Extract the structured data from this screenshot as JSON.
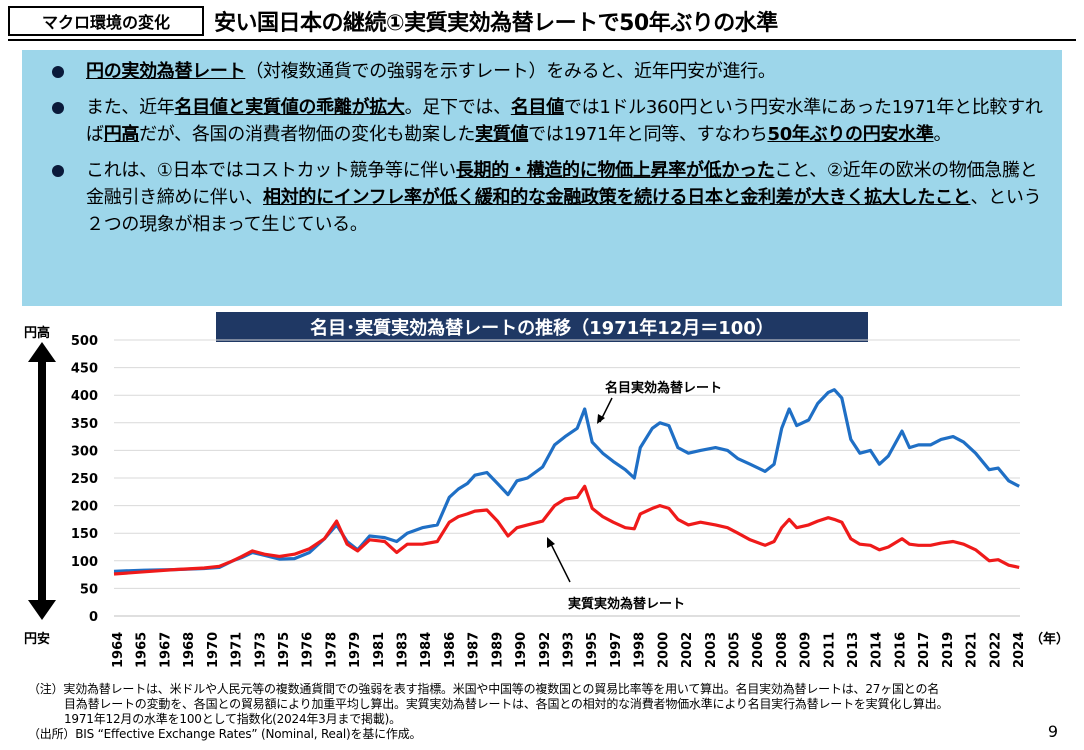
{
  "header": {
    "tag": "マクロ環境の変化",
    "title": "安い国日本の継続①実質実効為替レートで50年ぶりの水準"
  },
  "bullets": [
    [
      {
        "t": "円の実効為替レート",
        "b": true
      },
      {
        "t": "（対複数通貨での強弱を示すレート）をみると、近年円安が進行。",
        "b": false
      }
    ],
    [
      {
        "t": "また、近年",
        "b": false
      },
      {
        "t": "名目値と実質値の乖離が拡大",
        "b": true
      },
      {
        "t": "。足下では、",
        "b": false
      },
      {
        "t": "名目値",
        "b": true
      },
      {
        "t": "では1ドル360円という円安水準にあった1971年と比較すれば",
        "b": false
      },
      {
        "t": "円高",
        "b": true
      },
      {
        "t": "だが、各国の消費者物価の変化も勘案した",
        "b": false
      },
      {
        "t": "実質値",
        "b": true
      },
      {
        "t": "では1971年と同等、すなわち",
        "b": false
      },
      {
        "t": "50年ぶりの円安水準",
        "b": true
      },
      {
        "t": "。",
        "b": false
      }
    ],
    [
      {
        "t": "これは、①日本ではコストカット競争等に伴い",
        "b": false
      },
      {
        "t": "長期的・構造的に物価上昇率が低かった",
        "b": true
      },
      {
        "t": "こと、②近年の欧米の物価急騰と金融引き締めに伴い、",
        "b": false
      },
      {
        "t": "相対的にインフレ率が低く緩和的な金融政策を続ける日本と金利差が大きく拡大したこと",
        "b": true
      },
      {
        "t": "、という２つの現象が相まって生じている。",
        "b": false
      }
    ]
  ],
  "chart_data": {
    "type": "line",
    "title": "名目･実質実効為替レートの推移（1971年12月＝100）",
    "ylim": [
      0,
      500
    ],
    "yticks": [
      0,
      50,
      100,
      150,
      200,
      250,
      300,
      350,
      400,
      450,
      500
    ],
    "xlim": [
      1964,
      2024.25
    ],
    "xticks": [
      "1964",
      "1965",
      "1967",
      "1968",
      "1970",
      "1971",
      "1973",
      "1975",
      "1976",
      "1978",
      "1979",
      "1981",
      "1983",
      "1984",
      "1986",
      "1987",
      "1989",
      "1990",
      "1992",
      "1993",
      "1995",
      "1997",
      "1998",
      "2000",
      "2002",
      "2003",
      "2005",
      "2006",
      "2008",
      "2009",
      "2011",
      "2013",
      "2014",
      "2016",
      "2017",
      "2019",
      "2021",
      "2022",
      "2024"
    ],
    "y_high_label": "円高",
    "y_low_label": "円安",
    "x_unit": "（年）",
    "grid": true,
    "series": [
      {
        "name": "名目実効為替レート",
        "color": "#1f6fc5",
        "points": [
          [
            1964,
            81
          ],
          [
            1966,
            83
          ],
          [
            1968,
            84
          ],
          [
            1970,
            86
          ],
          [
            1971,
            88
          ],
          [
            1971.9,
            100
          ],
          [
            1972.5,
            106
          ],
          [
            1973.2,
            115
          ],
          [
            1974,
            110
          ],
          [
            1975,
            103
          ],
          [
            1976,
            104
          ],
          [
            1977,
            115
          ],
          [
            1978,
            140
          ],
          [
            1978.8,
            165
          ],
          [
            1979.5,
            135
          ],
          [
            1980.2,
            120
          ],
          [
            1981,
            145
          ],
          [
            1982,
            142
          ],
          [
            1982.8,
            135
          ],
          [
            1983.5,
            150
          ],
          [
            1984.5,
            160
          ],
          [
            1985.5,
            165
          ],
          [
            1986.3,
            215
          ],
          [
            1986.9,
            230
          ],
          [
            1987.5,
            240
          ],
          [
            1988,
            255
          ],
          [
            1988.8,
            260
          ],
          [
            1989.5,
            240
          ],
          [
            1990.2,
            220
          ],
          [
            1990.8,
            245
          ],
          [
            1991.5,
            250
          ],
          [
            1992.5,
            270
          ],
          [
            1993.3,
            310
          ],
          [
            1994,
            325
          ],
          [
            1994.8,
            340
          ],
          [
            1995.3,
            375
          ],
          [
            1995.8,
            315
          ],
          [
            1996.5,
            295
          ],
          [
            1997.2,
            280
          ],
          [
            1998,
            265
          ],
          [
            1998.6,
            250
          ],
          [
            1999,
            305
          ],
          [
            1999.8,
            340
          ],
          [
            2000.3,
            350
          ],
          [
            2000.9,
            345
          ],
          [
            2001.5,
            305
          ],
          [
            2002.2,
            295
          ],
          [
            2003,
            300
          ],
          [
            2004,
            305
          ],
          [
            2004.8,
            300
          ],
          [
            2005.5,
            285
          ],
          [
            2006.3,
            275
          ],
          [
            2007.3,
            262
          ],
          [
            2007.9,
            275
          ],
          [
            2008.4,
            340
          ],
          [
            2008.9,
            375
          ],
          [
            2009.4,
            345
          ],
          [
            2010.2,
            355
          ],
          [
            2010.8,
            385
          ],
          [
            2011.5,
            405
          ],
          [
            2011.9,
            410
          ],
          [
            2012.4,
            395
          ],
          [
            2013,
            320
          ],
          [
            2013.6,
            295
          ],
          [
            2014.3,
            300
          ],
          [
            2014.9,
            275
          ],
          [
            2015.5,
            290
          ],
          [
            2016.4,
            335
          ],
          [
            2016.9,
            305
          ],
          [
            2017.5,
            310
          ],
          [
            2018.3,
            310
          ],
          [
            2019,
            320
          ],
          [
            2019.8,
            325
          ],
          [
            2020.5,
            315
          ],
          [
            2021.3,
            295
          ],
          [
            2022.2,
            265
          ],
          [
            2022.8,
            268
          ],
          [
            2023.5,
            245
          ],
          [
            2024.2,
            235
          ]
        ]
      },
      {
        "name": "実質実効為替レート",
        "color": "#ef1a1a",
        "points": [
          [
            1964,
            76
          ],
          [
            1966,
            80
          ],
          [
            1968,
            84
          ],
          [
            1970,
            87
          ],
          [
            1971,
            90
          ],
          [
            1971.9,
            100
          ],
          [
            1972.5,
            108
          ],
          [
            1973.2,
            118
          ],
          [
            1974,
            112
          ],
          [
            1975,
            108
          ],
          [
            1976,
            112
          ],
          [
            1977,
            122
          ],
          [
            1978,
            140
          ],
          [
            1978.8,
            172
          ],
          [
            1979.5,
            130
          ],
          [
            1980.2,
            118
          ],
          [
            1981,
            138
          ],
          [
            1982,
            135
          ],
          [
            1982.8,
            115
          ],
          [
            1983.5,
            130
          ],
          [
            1984.5,
            130
          ],
          [
            1985.5,
            135
          ],
          [
            1986.3,
            170
          ],
          [
            1986.9,
            180
          ],
          [
            1987.5,
            185
          ],
          [
            1988,
            190
          ],
          [
            1988.8,
            192
          ],
          [
            1989.5,
            172
          ],
          [
            1990.2,
            145
          ],
          [
            1990.8,
            160
          ],
          [
            1991.5,
            165
          ],
          [
            1992.5,
            172
          ],
          [
            1993.3,
            200
          ],
          [
            1994,
            212
          ],
          [
            1994.8,
            215
          ],
          [
            1995.3,
            235
          ],
          [
            1995.8,
            195
          ],
          [
            1996.5,
            180
          ],
          [
            1997.2,
            170
          ],
          [
            1998,
            160
          ],
          [
            1998.6,
            158
          ],
          [
            1999,
            185
          ],
          [
            1999.8,
            195
          ],
          [
            2000.3,
            200
          ],
          [
            2000.9,
            195
          ],
          [
            2001.5,
            175
          ],
          [
            2002.2,
            165
          ],
          [
            2003,
            170
          ],
          [
            2004,
            165
          ],
          [
            2004.8,
            160
          ],
          [
            2005.5,
            150
          ],
          [
            2006.3,
            138
          ],
          [
            2007.3,
            128
          ],
          [
            2007.9,
            135
          ],
          [
            2008.4,
            160
          ],
          [
            2008.9,
            175
          ],
          [
            2009.4,
            160
          ],
          [
            2010.2,
            165
          ],
          [
            2010.8,
            172
          ],
          [
            2011.5,
            178
          ],
          [
            2011.9,
            175
          ],
          [
            2012.4,
            170
          ],
          [
            2013,
            140
          ],
          [
            2013.6,
            130
          ],
          [
            2014.3,
            128
          ],
          [
            2014.9,
            120
          ],
          [
            2015.5,
            125
          ],
          [
            2016.4,
            140
          ],
          [
            2016.9,
            130
          ],
          [
            2017.5,
            128
          ],
          [
            2018.3,
            128
          ],
          [
            2019,
            132
          ],
          [
            2019.8,
            135
          ],
          [
            2020.5,
            130
          ],
          [
            2021.3,
            120
          ],
          [
            2022.2,
            100
          ],
          [
            2022.8,
            102
          ],
          [
            2023.5,
            92
          ],
          [
            2024.2,
            88
          ]
        ]
      }
    ]
  },
  "notes": {
    "line1": "（注）実効為替レートは、米ドルや人民元等の複数通貨間での強弱を表す指標。米国や中国等の複数国との貿易比率等を用いて算出。名目実効為替レートは、27ヶ国との名",
    "line2": "目為替レートの変動を、各国との貿易額により加重平均し算出。実質実効為替レートは、各国との相対的な消費者物価水準により名目実行為替レートを実質化し算出。",
    "line3": "1971年12月の水準を100として指数化(2024年3月まで掲載)。",
    "line4": "（出所）BIS “Effective Exchange Rates” (Nominal, Real)を基に作成。"
  },
  "page_number": "9"
}
